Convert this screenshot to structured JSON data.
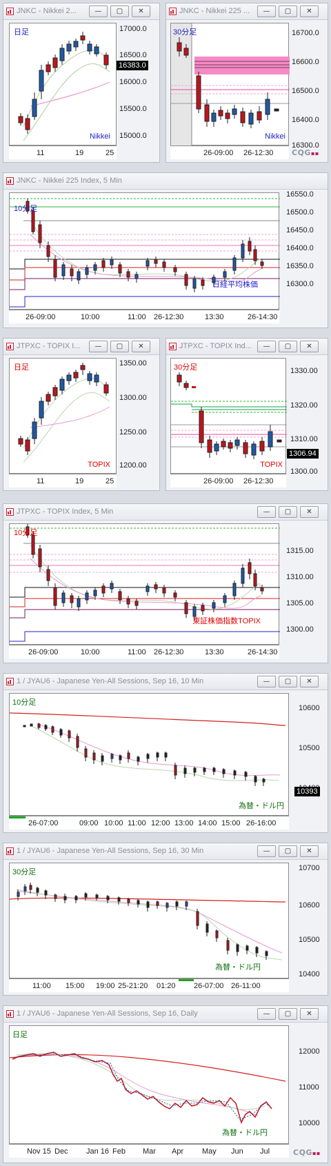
{
  "colors": {
    "up": "#1e5aa8",
    "down": "#c0141c",
    "ma_fast": "#b9d6b0",
    "ma_slow": "#e79ad0",
    "label_blue": "#1f1fc8",
    "label_red": "#e00000",
    "label_green": "#107010"
  },
  "icons": {
    "window_icon": "chart-window-icon",
    "minimize": "minimize-icon",
    "restore": "restore-icon",
    "close": "close-icon"
  },
  "buttons": {
    "minimize": "—",
    "restore": "▢",
    "close": "✕"
  },
  "w1": {
    "title": "JNKC - Nikkei 2...",
    "interval": "日足",
    "symbol": "Nikkei",
    "price": "16383.0",
    "yticks": [
      "17000.0",
      "16500.0",
      "16000.0",
      "15500.0",
      "15000.0"
    ],
    "xticks": [
      "11",
      "19",
      "25"
    ]
  },
  "w2": {
    "title": "JNKC - Nikkei 225 ...",
    "interval": "30分足",
    "symbol": "Nikkei",
    "yticks": [
      "16700.0",
      "16600.0",
      "16500.0",
      "16400.0",
      "16300.0"
    ],
    "xticks": [
      "26-09:00",
      "26-12:30"
    ],
    "logo": "CQG"
  },
  "w3": {
    "title": "JNKC - Nikkei 225 Index, 5 Min",
    "interval": "10分足",
    "symbol": "日経平均株価",
    "yticks": [
      "16550.0",
      "16500.0",
      "16450.0",
      "16400.0",
      "16350.0",
      "16300.0"
    ],
    "xticks": [
      "26-09:00",
      "10:00",
      "11:00",
      "26-12:30",
      "13:30",
      "26-14:30"
    ]
  },
  "w4": {
    "title": "JTPXC - TOPIX I...",
    "interval": "日足",
    "symbol": "TOPIX",
    "yticks": [
      "1350.00",
      "1300.00",
      "1250.00",
      "1200.00"
    ],
    "xticks": [
      "11",
      "19",
      "25"
    ]
  },
  "w5": {
    "title": "JTPXC - TOPIX Ind...",
    "interval": "30分足",
    "symbol": "TOPIX",
    "price": "1306.94",
    "yticks": [
      "1330.00",
      "1320.00",
      "1310.00",
      "1300.00"
    ],
    "xticks": [
      "26-09:00",
      "26-12:30"
    ]
  },
  "w6": {
    "title": "JTPXC - TOPIX Index, 5 Min",
    "interval": "10分足",
    "symbol": "東証株価指数TOPIX",
    "yticks": [
      "1315.00",
      "1310.00",
      "1305.00",
      "1300.00"
    ],
    "xticks": [
      "26-09:00",
      "10:00",
      "11:00",
      "26-12:30",
      "13:30",
      "26-14:30"
    ]
  },
  "w7": {
    "title": "1 / JYAU6 - Japanese Yen-All Sessions, Sep 16, 10 Min",
    "interval": "10分足",
    "symbol": "為替・ドル円",
    "price": "10393",
    "yticks": [
      "10600",
      "10500",
      "10400"
    ],
    "xticks": [
      "26-07:00",
      "09:00",
      "10:00",
      "11:00",
      "12:00",
      "13:00",
      "14:00",
      "15:00",
      "26-16:00"
    ]
  },
  "w8": {
    "title": "1 / JYAU6 - Japanese Yen-All Sessions, Sep 16, 30 Min",
    "interval": "30分足",
    "symbol": "為替・ドル円",
    "yticks": [
      "10700",
      "10600",
      "10500",
      "10400"
    ],
    "xticks": [
      "11:00",
      "15:00",
      "19:00",
      "25-21:20",
      "01:20",
      "26-07:00",
      "26-11:00"
    ]
  },
  "w9": {
    "title": "1 / JYAU6 - Japanese Yen-All Sessions, Sep 16, Daily",
    "interval": "日足",
    "symbol": "為替・ドル円",
    "yticks": [
      "12000",
      "11000",
      "10000"
    ],
    "xticks": [
      "Nov 15",
      "Dec",
      "Jan 16",
      "Feb",
      "Mar",
      "Apr",
      "May",
      "Jun",
      "Jul"
    ],
    "logo": "CQG"
  }
}
